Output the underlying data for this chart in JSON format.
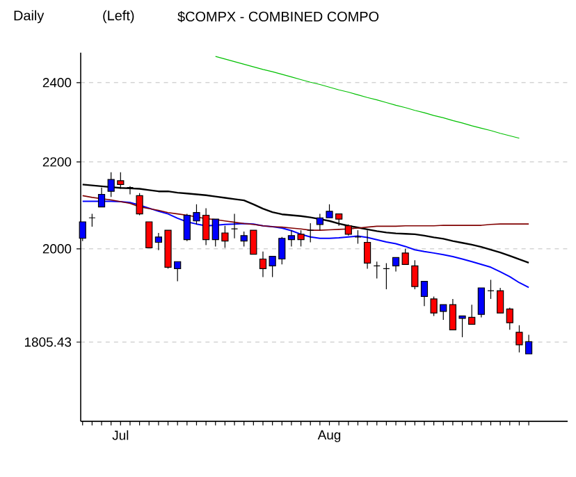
{
  "chart_data": {
    "type": "candlestick",
    "title": "$COMPX - COMBINED COMPO",
    "annotations": [
      "Daily",
      "(Left)"
    ],
    "categories": [
      null,
      null,
      null,
      null,
      "Jul",
      null,
      null,
      null,
      null,
      null,
      null,
      null,
      null,
      null,
      null,
      null,
      null,
      null,
      null,
      null,
      null,
      null,
      null,
      null,
      null,
      null,
      "Aug",
      null,
      null,
      null,
      null,
      null,
      null,
      null,
      null,
      null,
      null,
      null,
      null,
      null,
      null,
      null,
      null,
      null,
      null,
      null,
      null,
      null
    ],
    "ohlc": [
      [
        2023,
        2060,
        2017,
        2060
      ],
      [
        2069,
        2078,
        2049,
        2069
      ],
      [
        2094,
        2139,
        2094,
        2123
      ],
      [
        2130,
        2175,
        2117,
        2158
      ],
      [
        2155,
        2175,
        2136,
        2146
      ],
      [
        2139,
        2142,
        2123,
        2139
      ],
      [
        2120,
        2126,
        2075,
        2078
      ],
      [
        2060,
        2060,
        2002,
        2002
      ],
      [
        2014,
        2035,
        1997,
        2026
      ],
      [
        2041,
        2041,
        1957,
        1960
      ],
      [
        1957,
        1972,
        1930,
        1972
      ],
      [
        2020,
        2078,
        2017,
        2075
      ],
      [
        2062,
        2100,
        2054,
        2081
      ],
      [
        2075,
        2091,
        2008,
        2020
      ],
      [
        2020,
        2066,
        2005,
        2066
      ],
      [
        2035,
        2051,
        2002,
        2017
      ],
      [
        2044,
        2078,
        2023,
        2044
      ],
      [
        2017,
        2038,
        2005,
        2029
      ],
      [
        2041,
        2041,
        1988,
        1988
      ],
      [
        1978,
        1994,
        1939,
        1957
      ],
      [
        1963,
        1984,
        1939,
        1984
      ],
      [
        1978,
        2026,
        1966,
        2023
      ],
      [
        2020,
        2041,
        2005,
        2029
      ],
      [
        2032,
        2041,
        2005,
        2020
      ],
      [
        2041,
        2057,
        2014,
        2041
      ],
      [
        2054,
        2078,
        2041,
        2069
      ],
      [
        2069,
        2100,
        2069,
        2084
      ],
      [
        2078,
        2078,
        2051,
        2066
      ],
      [
        2051,
        2054,
        2029,
        2032
      ],
      [
        2026,
        2041,
        2011,
        2026
      ],
      [
        2014,
        2041,
        1957,
        1969
      ],
      [
        1963,
        1972,
        1936,
        1963
      ],
      [
        1957,
        1969,
        1913,
        1957
      ],
      [
        1963,
        1981,
        1951,
        1981
      ],
      [
        1991,
        2000,
        1966,
        1966
      ],
      [
        1963,
        1975,
        1913,
        1919
      ],
      [
        1898,
        1930,
        1878,
        1930
      ],
      [
        1893,
        1898,
        1858,
        1864
      ],
      [
        1867,
        1881,
        1850,
        1881
      ],
      [
        1881,
        1893,
        1830,
        1830
      ],
      [
        1853,
        1858,
        1815,
        1858
      ],
      [
        1855,
        1881,
        1841,
        1841
      ],
      [
        1861,
        1916,
        1855,
        1916
      ],
      [
        1910,
        1933,
        1893,
        1910
      ],
      [
        1910,
        1916,
        1864,
        1864
      ],
      [
        1872,
        1875,
        1830,
        1844
      ],
      [
        1825,
        1839,
        1785,
        1800
      ],
      [
        1782,
        1820,
        1782,
        1806
      ]
    ],
    "colors": [
      "#0000ff",
      "#000000",
      "#0000ff",
      "#0000ff",
      "#ff0000",
      "#000000",
      "#ff0000",
      "#ff0000",
      "#0000ff",
      "#ff0000",
      "#0000ff",
      "#0000ff",
      "#0000ff",
      "#ff0000",
      "#0000ff",
      "#ff0000",
      "#000000",
      "#0000ff",
      "#ff0000",
      "#ff0000",
      "#0000ff",
      "#0000ff",
      "#0000ff",
      "#ff0000",
      "#000000",
      "#0000ff",
      "#0000ff",
      "#ff0000",
      "#ff0000",
      "#000000",
      "#ff0000",
      "#000000",
      "#000000",
      "#0000ff",
      "#ff0000",
      "#ff0000",
      "#0000ff",
      "#ff0000",
      "#0000ff",
      "#ff0000",
      "#0000ff",
      "#ff0000",
      "#0000ff",
      "#000000",
      "#ff0000",
      "#ff0000",
      "#ff0000",
      "#0000ff"
    ],
    "series": [
      {
        "type": "line",
        "color": "#000000",
        "values": [
          2146,
          2144,
          2142,
          2140,
          2138,
          2137,
          2136,
          2133,
          2130,
          2130,
          2127,
          2125,
          2123,
          2121,
          2118,
          2115,
          2112,
          2109,
          2100,
          2090,
          2082,
          2077,
          2075,
          2073,
          2070,
          2066,
          2062,
          2056,
          2051,
          2047,
          2043,
          2039,
          2036,
          2034,
          2033,
          2032,
          2029,
          2025,
          2022,
          2017,
          2013,
          2009,
          2004,
          1998,
          1992,
          1985,
          1977,
          1970
        ]
      },
      {
        "type": "line",
        "color": "#0000ff",
        "values": [
          2107,
          2107,
          2107,
          2107,
          2106,
          2104,
          2098,
          2091,
          2084,
          2078,
          2068,
          2060,
          2055,
          2051,
          2052,
          2054,
          2055,
          2056,
          2055,
          2051,
          2049,
          2046,
          2040,
          2032,
          2026,
          2023,
          2023,
          2024,
          2026,
          2028,
          2025,
          2020,
          2015,
          2011,
          2005,
          1998,
          1994,
          1991,
          1987,
          1983,
          1978,
          1972,
          1966,
          1960,
          1950,
          1940,
          1927,
          1917
        ]
      },
      {
        "type": "line",
        "color": "#800000",
        "values": [
          2120,
          2116,
          2113,
          2110,
          2106,
          2102,
          2094,
          2090,
          2086,
          2081,
          2078,
          2075,
          2071,
          2067,
          2065,
          2062,
          2059,
          2056,
          2054,
          2051,
          2049,
          2048,
          2046,
          2044,
          2041,
          2041,
          2042,
          2043,
          2044,
          2046,
          2048,
          2050,
          2050,
          2050,
          2051,
          2051,
          2051,
          2051,
          2052,
          2052,
          2052,
          2052,
          2052,
          2054,
          2055,
          2055,
          2055,
          2055
        ]
      },
      {
        "type": "line",
        "color": "#00c000",
        "values": [
          null,
          null,
          null,
          null,
          null,
          null,
          null,
          null,
          null,
          null,
          null,
          null,
          null,
          null,
          2470,
          2463,
          2456,
          2449,
          2442,
          2435,
          2429,
          2422,
          2415,
          2408,
          2401,
          2395,
          2388,
          2381,
          2375,
          2368,
          2361,
          2355,
          2348,
          2341,
          2335,
          2328,
          2322,
          2315,
          2309,
          2302,
          2296,
          2289,
          2283,
          2277,
          2270,
          2264,
          2258,
          null
        ]
      }
    ],
    "ylim": [
      1655,
      2480
    ],
    "yticks": [
      2400,
      2200,
      2000,
      1805.43
    ],
    "log": "y",
    "grid": "y"
  }
}
